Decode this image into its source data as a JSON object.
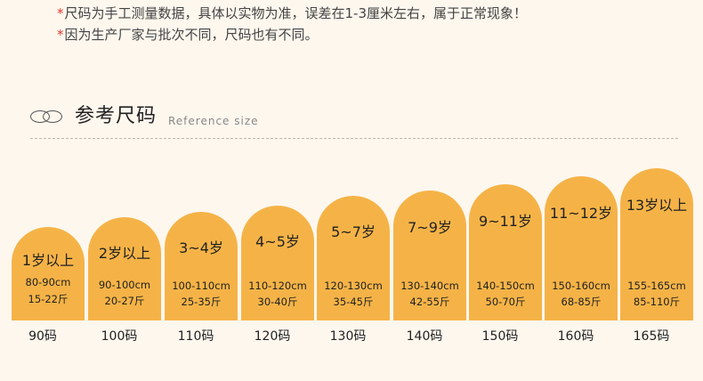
{
  "notes": [
    {
      "star": "*",
      "text": "尺码为手工测量数据，具体以实物为准，误差在1-3厘米左右，属于正常现象！"
    },
    {
      "star": "*",
      "text": "因为生产厂家与批次不同，尺码也有不同。"
    }
  ],
  "section": {
    "title": "参考尺码",
    "subtitle": "Reference size"
  },
  "sizes": [
    {
      "age": "1岁以上",
      "height": "80-90cm",
      "weight": "15-22斤",
      "label": "90码"
    },
    {
      "age": "2岁以上",
      "height": "90-100cm",
      "weight": "20-27斤",
      "label": "100码"
    },
    {
      "age": "3~4岁",
      "height": "100-110cm",
      "weight": "25-35斤",
      "label": "110码"
    },
    {
      "age": "4~5岁",
      "height": "110-120cm",
      "weight": "30-40斤",
      "label": "120码"
    },
    {
      "age": "5~7岁",
      "height": "120-130cm",
      "weight": "35-45斤",
      "label": "130码"
    },
    {
      "age": "7~9岁",
      "height": "130-140cm",
      "weight": "42-55斤",
      "label": "140码"
    },
    {
      "age": "9~11岁",
      "height": "140-150cm",
      "weight": "50-70斤",
      "label": "150码"
    },
    {
      "age": "11~12岁",
      "height": "150-160cm",
      "weight": "68-85斤",
      "label": "160码"
    },
    {
      "age": "13岁以上",
      "height": "155-165cm",
      "weight": "85-110斤",
      "label": "165码"
    }
  ],
  "colors": {
    "card": "#f5b347",
    "asterisk": "#e23a2a",
    "background": "#fdf7ee"
  }
}
